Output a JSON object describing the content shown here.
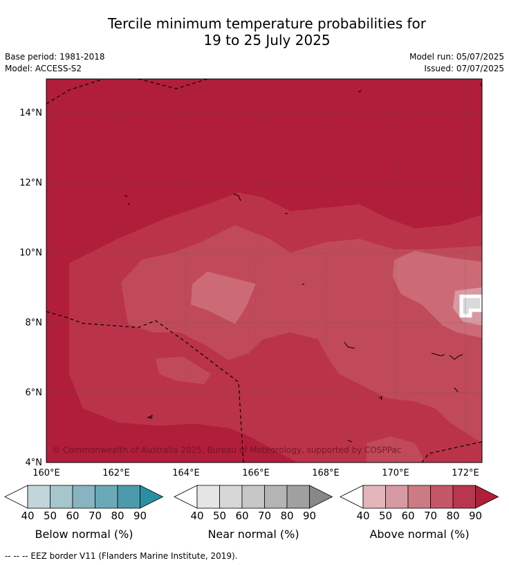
{
  "header": {
    "title_line1": "Tercile minimum temperature probabilities for",
    "title_line2": "19 to 25 July 2025",
    "base_period": "Base period: 1981-2018",
    "model": "Model: ACCESS-S2",
    "model_run": "Model run: 05/07/2025",
    "issued": "Issued: 07/07/2025"
  },
  "map": {
    "lat_ticks": [
      "4°N",
      "6°N",
      "8°N",
      "10°N",
      "12°N",
      "14°N"
    ],
    "lon_ticks": [
      "160°E",
      "162°E",
      "164°E",
      "166°E",
      "168°E",
      "170°E",
      "172°E"
    ],
    "copyright": "© Commonwealth of Australia 2025, Bureau of Meteorology, supported by COSPPac",
    "colors": {
      "above_90": "#b01e3a",
      "above_80": "#bb3349",
      "above_70": "#c04a5a",
      "above_60": "#cc6a75",
      "above_50": "#d89aa2",
      "above_40": "#e3b5ba",
      "near_max": "#d9d9d9"
    }
  },
  "legends": [
    {
      "title": "Below normal (%)",
      "ticks": [
        "40",
        "50",
        "60",
        "70",
        "80",
        "90"
      ],
      "colors": [
        "#ffffff",
        "#c1d5db",
        "#a6c5cc",
        "#87b4c0",
        "#6aa9b8",
        "#4c9aab",
        "#2a8fa3"
      ]
    },
    {
      "title": "Near normal (%)",
      "ticks": [
        "40",
        "50",
        "60",
        "70",
        "80",
        "90"
      ],
      "colors": [
        "#ffffff",
        "#e5e5e5",
        "#d7d7d7",
        "#c7c7c7",
        "#b4b4b4",
        "#a0a0a0",
        "#888888"
      ]
    },
    {
      "title": "Above normal (%)",
      "ticks": [
        "40",
        "50",
        "60",
        "70",
        "80",
        "90"
      ],
      "colors": [
        "#ffffff",
        "#e3b5ba",
        "#d89aa2",
        "#cc7a84",
        "#c45668",
        "#b93650",
        "#b01e3a"
      ]
    }
  ],
  "footer": {
    "eez_note": "--  --  -- EEZ border V11 (Flanders Marine Institute, 2019)."
  }
}
